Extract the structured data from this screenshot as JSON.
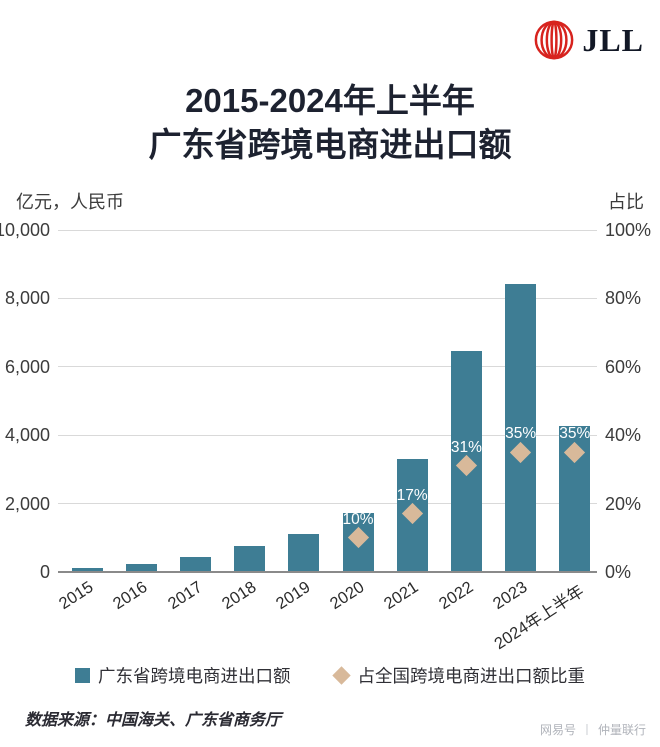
{
  "header": {
    "logo_text": "JLL",
    "logo_mark_color": "#D7231E",
    "logo_text_color": "#121826"
  },
  "title": {
    "line1": "2015-2024年上半年",
    "line2": "广东省跨境电商进出口额"
  },
  "chart_data": {
    "type": "bar",
    "title": "2015-2024年上半年 广东省跨境电商进出口额",
    "categories": [
      "2015",
      "2016",
      "2017",
      "2018",
      "2019",
      "2020",
      "2021",
      "2022",
      "2023",
      "2024年上半年"
    ],
    "series": [
      {
        "name": "广东省跨境电商进出口额",
        "type": "bar",
        "axis": "left",
        "values": [
          113,
          228,
          442,
          760,
          1108,
          1726,
          3310,
          6454,
          8433,
          4273
        ]
      },
      {
        "name": "占全国跨境电商进出口额比重",
        "type": "scatter",
        "marker": "diamond",
        "axis": "right",
        "values": [
          null,
          null,
          null,
          null,
          null,
          10,
          17,
          31,
          35,
          35
        ],
        "point_labels": [
          "",
          "",
          "",
          "",
          "",
          "10%",
          "17%",
          "31%",
          "35%",
          "35%"
        ]
      }
    ],
    "left_axis": {
      "title": "亿元，人民币",
      "range": [
        0,
        10000
      ],
      "ticks": [
        "10,000",
        "8,000",
        "6,000",
        "4,000",
        "2,000",
        "0"
      ]
    },
    "right_axis": {
      "title": "占比",
      "range": [
        0,
        100
      ],
      "ticks": [
        "100%",
        "80%",
        "60%",
        "40%",
        "20%",
        "0%"
      ]
    },
    "grid": true,
    "legend_position": "bottom",
    "colors": {
      "bar": "#3E7D94",
      "diamond": "#D8B99A",
      "gridline": "#D9D9D9",
      "baseline": "#8A8A8A",
      "title": "#1D2230"
    }
  },
  "legend": {
    "items": [
      {
        "label": "广东省跨境电商进出口额",
        "marker": "square",
        "color": "#3E7D94"
      },
      {
        "label": "占全国跨境电商进出口额比重",
        "marker": "diamond",
        "color": "#D8B99A"
      }
    ]
  },
  "footer": {
    "source": "数据来源：中国海关、广东省商务厅",
    "watermark_left": "网易号",
    "watermark_right": "仲量联行"
  }
}
